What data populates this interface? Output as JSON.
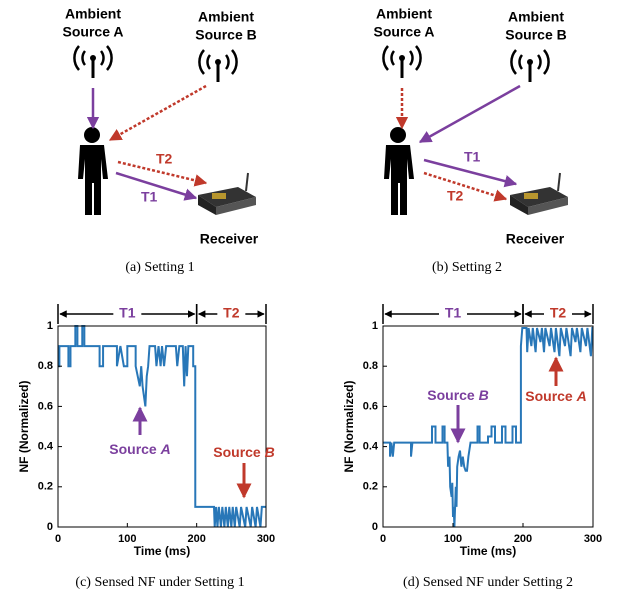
{
  "panels": [
    {
      "source_a": [
        "Ambient",
        "Source A"
      ],
      "source_b": [
        "Ambient",
        "Source B"
      ],
      "t1": "T1",
      "t2": "T2",
      "receiver": "Receiver",
      "caption": "(a) Setting 1"
    },
    {
      "source_a": [
        "Ambient",
        "Source A"
      ],
      "source_b": [
        "Ambient",
        "Source B"
      ],
      "t1": "T1",
      "t2": "T2",
      "receiver": "Receiver",
      "caption": "(b) Setting 2"
    }
  ],
  "chart_data": [
    {
      "type": "line",
      "caption": "(c) Sensed NF under Setting 1",
      "xlabel": "Time (ms)",
      "ylabel": "NF (Normalized)",
      "xlim": [
        0,
        300
      ],
      "ylim": [
        0,
        1
      ],
      "xticks": [
        0,
        100,
        200,
        300
      ],
      "yticks": [
        0,
        0.2,
        0.4,
        0.6,
        0.8,
        1
      ],
      "color": "#2877b8",
      "x": [
        0,
        2,
        2,
        15,
        15,
        18,
        18,
        25,
        25,
        28,
        28,
        35,
        35,
        38,
        38,
        60,
        60,
        65,
        65,
        85,
        85,
        90,
        95,
        100,
        100,
        112,
        112,
        118,
        120,
        122,
        124,
        126,
        128,
        130,
        132,
        140,
        142,
        145,
        148,
        150,
        153,
        156,
        170,
        172,
        175,
        180,
        182,
        184,
        186,
        188,
        195,
        195,
        198,
        198,
        225,
        226,
        228,
        230,
        232,
        235,
        237,
        240,
        242,
        245,
        247,
        250,
        252,
        255,
        257,
        262,
        264,
        270,
        272,
        278,
        280,
        285,
        287,
        292,
        294,
        300
      ],
      "values": [
        0.8,
        0.8,
        0.9,
        0.9,
        0.8,
        0.8,
        0.9,
        0.9,
        1,
        1,
        0.9,
        0.9,
        1,
        1,
        0.9,
        0.9,
        0.8,
        0.8,
        0.9,
        0.9,
        0.8,
        0.9,
        0.8,
        0.8,
        0.9,
        0.9,
        0.8,
        0.7,
        0.8,
        0.7,
        0.65,
        0.6,
        0.75,
        0.8,
        0.9,
        0.9,
        0.8,
        0.9,
        0.8,
        0.9,
        0.8,
        0.9,
        0.9,
        0.8,
        0.9,
        0.9,
        0.7,
        0.9,
        0.75,
        0.9,
        0.9,
        0.8,
        0.8,
        0.1,
        0.1,
        0,
        0.1,
        0,
        0.1,
        0,
        0.1,
        0,
        0.1,
        0,
        0.1,
        0,
        0.1,
        0,
        0.1,
        0,
        0.1,
        0,
        0.1,
        0,
        0.1,
        0,
        0.1,
        0,
        0.1,
        0.1
      ],
      "brackets": [
        {
          "label": "T1",
          "from": 0,
          "to": 200,
          "color": "#7b3f9e"
        },
        {
          "label": "T2",
          "from": 200,
          "to": 300,
          "color": "#c0392b"
        }
      ],
      "annotations": [
        {
          "text": "Source",
          "letter": "A",
          "color": "#7b3f9e"
        },
        {
          "text": "Source",
          "letter": "B",
          "color": "#c0392b"
        }
      ]
    },
    {
      "type": "line",
      "caption": "(d) Sensed NF under Setting 2",
      "xlabel": "Time (ms)",
      "ylabel": "NF (Normalized)",
      "xlim": [
        0,
        300
      ],
      "ylim": [
        0,
        1
      ],
      "xticks": [
        0,
        100,
        200,
        300
      ],
      "yticks": [
        0,
        0.2,
        0.4,
        0.6,
        0.8,
        1
      ],
      "color": "#2877b8",
      "x": [
        0,
        10,
        10,
        12,
        14,
        16,
        40,
        40,
        42,
        70,
        70,
        75,
        75,
        85,
        85,
        88,
        88,
        92,
        93,
        95,
        96,
        98,
        99,
        100,
        101,
        102,
        104,
        105,
        106,
        108,
        110,
        112,
        114,
        116,
        118,
        120,
        122,
        125,
        135,
        135,
        138,
        138,
        150,
        150,
        155,
        155,
        160,
        160,
        170,
        170,
        175,
        175,
        185,
        185,
        190,
        190,
        197,
        197,
        199,
        205,
        206,
        208,
        212,
        214,
        218,
        220,
        225,
        227,
        230,
        232,
        238,
        240,
        245,
        247,
        252,
        254,
        260,
        262,
        268,
        270,
        275,
        277,
        282,
        284,
        290,
        292,
        297,
        299,
        300
      ],
      "values": [
        0.42,
        0.42,
        0.35,
        0.42,
        0.35,
        0.42,
        0.42,
        0.35,
        0.42,
        0.42,
        0.5,
        0.5,
        0.42,
        0.42,
        0.5,
        0.5,
        0.42,
        0.42,
        0.3,
        0.35,
        0.2,
        0.15,
        0.22,
        0.05,
        0.1,
        0,
        0.2,
        0.1,
        0.3,
        0.35,
        0.38,
        0.3,
        0.35,
        0.3,
        0.28,
        0.28,
        0.35,
        0.42,
        0.42,
        0.5,
        0.5,
        0.42,
        0.42,
        0.45,
        0.45,
        0.5,
        0.5,
        0.42,
        0.42,
        0.5,
        0.5,
        0.42,
        0.42,
        0.5,
        0.5,
        0.42,
        0.42,
        0.9,
        0.99,
        0.99,
        0.87,
        0.99,
        0.9,
        0.99,
        0.87,
        0.99,
        0.92,
        0.99,
        0.87,
        0.99,
        0.9,
        0.99,
        0.87,
        0.99,
        0.85,
        0.99,
        0.9,
        0.99,
        0.85,
        0.99,
        0.92,
        0.99,
        0.87,
        0.99,
        0.9,
        0.99,
        0.85,
        0.99,
        0.99
      ],
      "brackets": [
        {
          "label": "T1",
          "from": 0,
          "to": 200,
          "color": "#7b3f9e"
        },
        {
          "label": "T2",
          "from": 200,
          "to": 300,
          "color": "#c0392b"
        }
      ],
      "annotations": [
        {
          "text": "Source",
          "letter": "B",
          "color": "#7b3f9e"
        },
        {
          "text": "Source",
          "letter": "A",
          "color": "#c0392b"
        }
      ]
    }
  ]
}
